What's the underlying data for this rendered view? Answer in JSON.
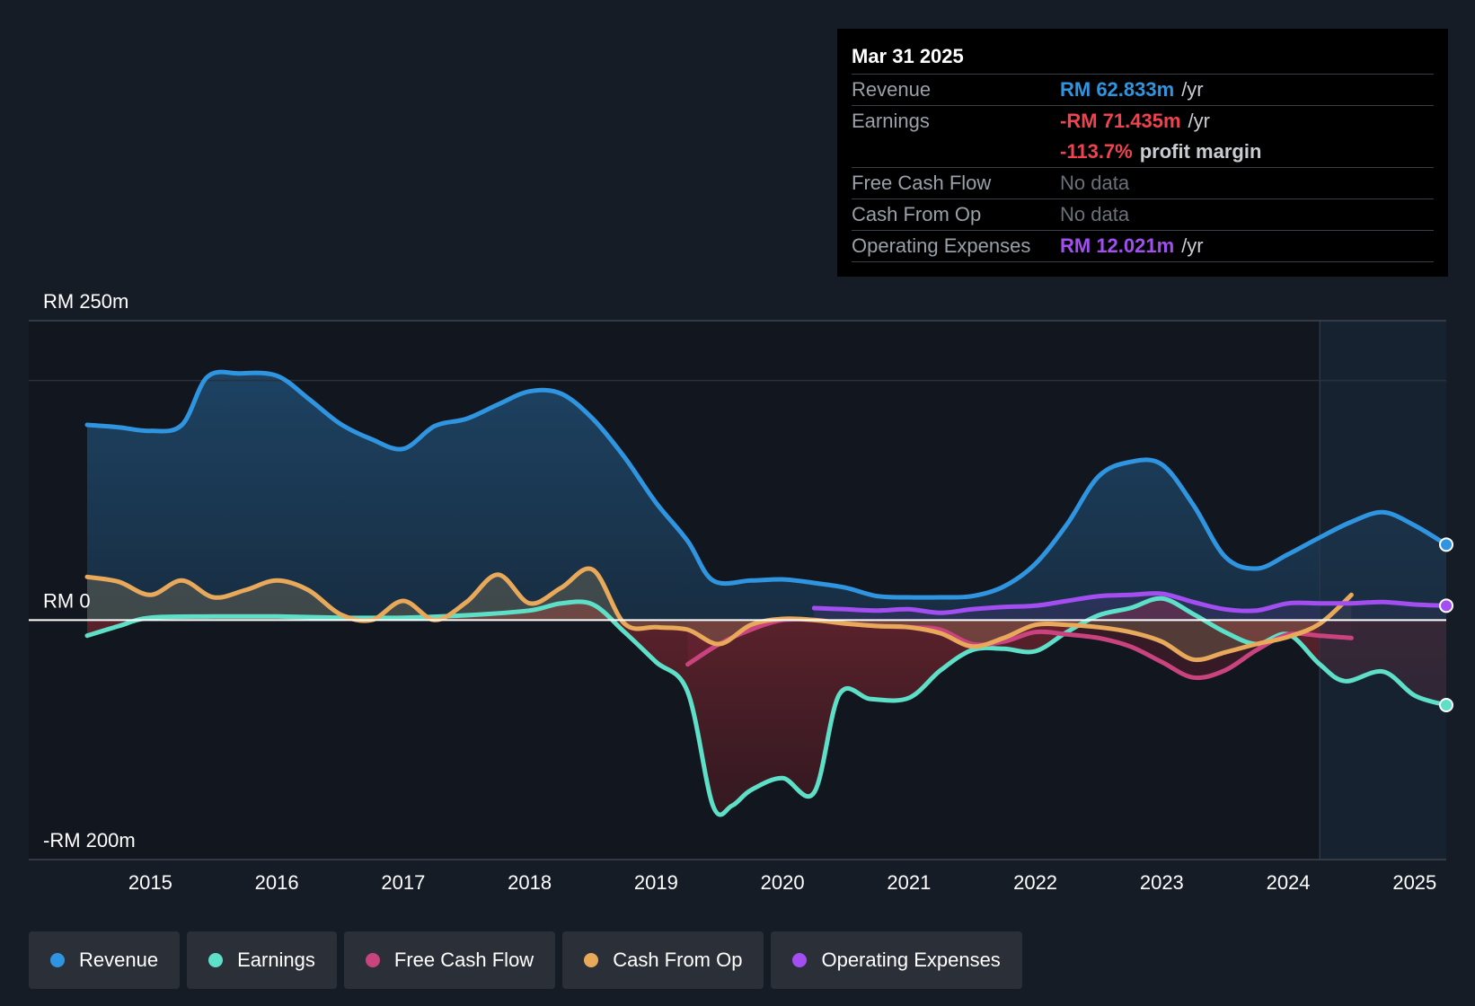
{
  "tooltip": {
    "date": "Mar 31 2025",
    "revenue_label": "Revenue",
    "revenue_value": "RM 62.833m",
    "revenue_unit": "/yr",
    "earnings_label": "Earnings",
    "earnings_value": "-RM 71.435m",
    "earnings_unit": "/yr",
    "margin_value": "-113.7%",
    "margin_text": "profit margin",
    "fcf_label": "Free Cash Flow",
    "fcf_value": "No data",
    "cfo_label": "Cash From Op",
    "cfo_value": "No data",
    "opex_label": "Operating Expenses",
    "opex_value": "RM 12.021m",
    "opex_unit": "/yr"
  },
  "legend": [
    {
      "label": "Revenue",
      "color": "#2f95e0"
    },
    {
      "label": "Earnings",
      "color": "#5ee0c8"
    },
    {
      "label": "Free Cash Flow",
      "color": "#c9437e"
    },
    {
      "label": "Cash From Op",
      "color": "#e8a95a"
    },
    {
      "label": "Operating Expenses",
      "color": "#a24ef0"
    }
  ],
  "chart_data": {
    "type": "line",
    "title": "",
    "xlabel": "",
    "ylabel": "",
    "y_tick_labels": [
      "RM 250m",
      "RM 0",
      "-RM 200m"
    ],
    "ylim": [
      -200,
      250
    ],
    "xlim": [
      2014.5,
      2025.25
    ],
    "x_ticks": [
      2015,
      2016,
      2017,
      2018,
      2019,
      2020,
      2021,
      2022,
      2023,
      2024,
      2025
    ],
    "x_tick_labels": [
      "2015",
      "2016",
      "2017",
      "2018",
      "2019",
      "2020",
      "2021",
      "2022",
      "2023",
      "2024",
      "2025"
    ],
    "series": [
      {
        "name": "Revenue",
        "color": "#2f95e0",
        "fill": true,
        "x": [
          2014.5,
          2014.75,
          2015.0,
          2015.25,
          2015.45,
          2015.7,
          2016.0,
          2016.25,
          2016.5,
          2016.75,
          2017.0,
          2017.25,
          2017.5,
          2017.75,
          2018.0,
          2018.25,
          2018.5,
          2018.75,
          2019.0,
          2019.25,
          2019.45,
          2019.75,
          2020.0,
          2020.25,
          2020.5,
          2020.75,
          2021.0,
          2021.25,
          2021.5,
          2021.75,
          2022.0,
          2022.25,
          2022.5,
          2022.75,
          2023.0,
          2023.25,
          2023.5,
          2023.75,
          2024.0,
          2024.25,
          2024.5,
          2024.75,
          2025.0,
          2025.25
        ],
        "y": [
          163,
          161,
          158,
          163,
          203,
          206,
          204,
          185,
          164,
          151,
          143,
          162,
          168,
          180,
          191,
          189,
          168,
          136,
          98,
          66,
          33,
          33,
          34,
          31,
          27,
          20,
          19,
          19,
          20,
          28,
          47,
          80,
          120,
          132,
          130,
          96,
          53,
          43,
          55,
          69,
          82,
          90,
          79,
          63
        ]
      },
      {
        "name": "Earnings",
        "color": "#5ee0c8",
        "fill": true,
        "x": [
          2014.5,
          2014.75,
          2015.0,
          2015.5,
          2016.0,
          2016.5,
          2017.0,
          2017.5,
          2018.0,
          2018.25,
          2018.5,
          2018.75,
          2019.0,
          2019.25,
          2019.45,
          2019.6,
          2019.75,
          2020.0,
          2020.25,
          2020.45,
          2020.7,
          2021.0,
          2021.25,
          2021.5,
          2021.75,
          2022.0,
          2022.25,
          2022.5,
          2022.75,
          2023.0,
          2023.25,
          2023.5,
          2023.75,
          2024.0,
          2024.25,
          2024.45,
          2024.75,
          2025.0,
          2025.25
        ],
        "y": [
          -13,
          -5,
          2,
          3,
          3,
          2,
          2,
          4,
          8,
          14,
          13,
          -10,
          -35,
          -60,
          -155,
          -155,
          -142,
          -132,
          -144,
          -62,
          -66,
          -65,
          -42,
          -25,
          -24,
          -26,
          -10,
          4,
          10,
          18,
          5,
          -10,
          -20,
          -12,
          -37,
          -51,
          -43,
          -63,
          -71
        ]
      },
      {
        "name": "Free Cash Flow",
        "color": "#c9437e",
        "fill": true,
        "x": [
          2019.25,
          2019.5,
          2019.75,
          2020.0,
          2020.25,
          2020.5,
          2020.75,
          2021.0,
          2021.25,
          2021.5,
          2021.75,
          2022.0,
          2022.25,
          2022.5,
          2022.75,
          2023.0,
          2023.25,
          2023.5,
          2023.75,
          2024.0,
          2024.25,
          2024.5
        ],
        "y": [
          -37,
          -20,
          -8,
          0,
          0,
          -3,
          -5,
          -6,
          -8,
          -20,
          -18,
          -10,
          -12,
          -15,
          -22,
          -35,
          -48,
          -42,
          -25,
          -12,
          -13,
          -15
        ]
      },
      {
        "name": "Cash From Op",
        "color": "#e8a95a",
        "fill": true,
        "x": [
          2014.5,
          2014.75,
          2015.0,
          2015.25,
          2015.5,
          2015.75,
          2016.0,
          2016.25,
          2016.5,
          2016.75,
          2017.0,
          2017.25,
          2017.5,
          2017.75,
          2018.0,
          2018.25,
          2018.5,
          2018.75,
          2019.0,
          2019.25,
          2019.5,
          2019.75,
          2020.0,
          2020.25,
          2020.5,
          2020.75,
          2021.0,
          2021.25,
          2021.5,
          2021.75,
          2022.0,
          2022.25,
          2022.5,
          2022.75,
          2023.0,
          2023.25,
          2023.5,
          2023.75,
          2024.0,
          2024.25,
          2024.5
        ],
        "y": [
          36,
          32,
          21,
          33,
          19,
          25,
          33,
          25,
          5,
          0,
          16,
          0,
          15,
          38,
          14,
          27,
          42,
          -3,
          -6,
          -8,
          -20,
          -4,
          1,
          0,
          -3,
          -5,
          -6,
          -11,
          -22,
          -15,
          -4,
          -4,
          -6,
          -10,
          -18,
          -33,
          -27,
          -20,
          -14,
          -3,
          21
        ]
      },
      {
        "name": "Operating Expenses",
        "color": "#a24ef0",
        "fill": true,
        "x": [
          2020.25,
          2020.5,
          2020.75,
          2021.0,
          2021.25,
          2021.5,
          2021.75,
          2022.0,
          2022.25,
          2022.5,
          2022.75,
          2023.0,
          2023.25,
          2023.5,
          2023.75,
          2024.0,
          2024.25,
          2024.5,
          2024.75,
          2025.0,
          2025.25
        ],
        "y": [
          10,
          9,
          8,
          9,
          6,
          9,
          11,
          12,
          16,
          20,
          21,
          22,
          15,
          9,
          8,
          14,
          14,
          14,
          15,
          13,
          12
        ]
      }
    ],
    "highlight_region_start": 2024.25,
    "end_markers": {
      "Revenue": 63,
      "Earnings": -71,
      "Operating Expenses": 12
    }
  }
}
